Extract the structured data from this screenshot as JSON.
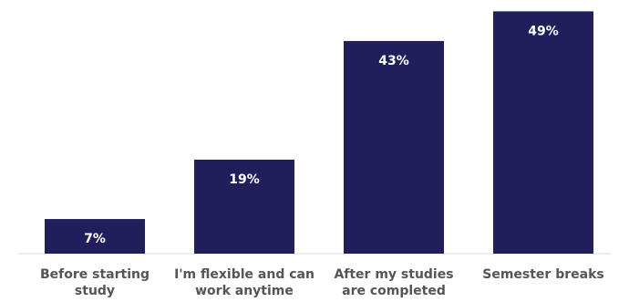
{
  "chart_data": {
    "type": "bar",
    "categories": [
      [
        "Before starting",
        "study"
      ],
      [
        "I'm flexible and can",
        "work anytime"
      ],
      [
        "After my studies",
        "are completed"
      ],
      [
        "Semester breaks"
      ]
    ],
    "values": [
      7,
      19,
      43,
      49
    ],
    "value_labels": [
      "7%",
      "19%",
      "43%",
      "49%"
    ],
    "ylim": [
      0,
      50
    ],
    "grid": false,
    "legend": "none",
    "colors": {
      "bar": "#201F5C",
      "value_label": "#ffffff",
      "category_label": "#555555",
      "axis": "#d9d9d9"
    }
  }
}
